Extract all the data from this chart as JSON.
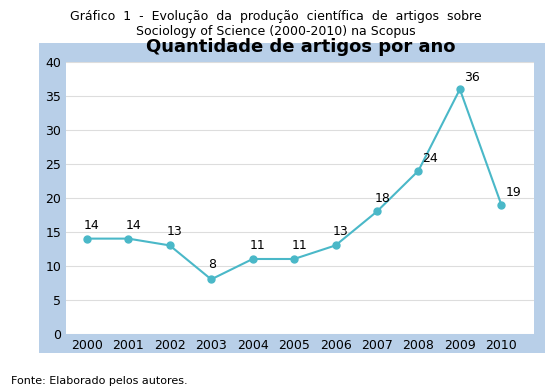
{
  "title": "Quantidade de artigos por ano",
  "suptitle_line1": "Gráfico  1  -  Evolução  da  produção  científica  de  artigos  sobre",
  "suptitle_line2": "Sociology of Science (2000-2010) na Scopus",
  "footer": "Fonte: Elaborado pelos autores.",
  "years": [
    2000,
    2001,
    2002,
    2003,
    2004,
    2005,
    2006,
    2007,
    2008,
    2009,
    2010
  ],
  "values": [
    14,
    14,
    13,
    8,
    11,
    11,
    13,
    18,
    24,
    36,
    19
  ],
  "line_color": "#4ab8c8",
  "marker_color": "#4ab8c8",
  "plot_bg_color": "#ffffff",
  "chart_frame_color": "#b8cfe8",
  "outer_bg_color": "#ffffff",
  "ylim": [
    0,
    40
  ],
  "yticks": [
    0,
    5,
    10,
    15,
    20,
    25,
    30,
    35,
    40
  ],
  "grid_color": "#dddddd",
  "title_fontsize": 13,
  "tick_fontsize": 9,
  "annotation_fontsize": 9,
  "suptitle_fontsize": 9,
  "footer_fontsize": 8
}
